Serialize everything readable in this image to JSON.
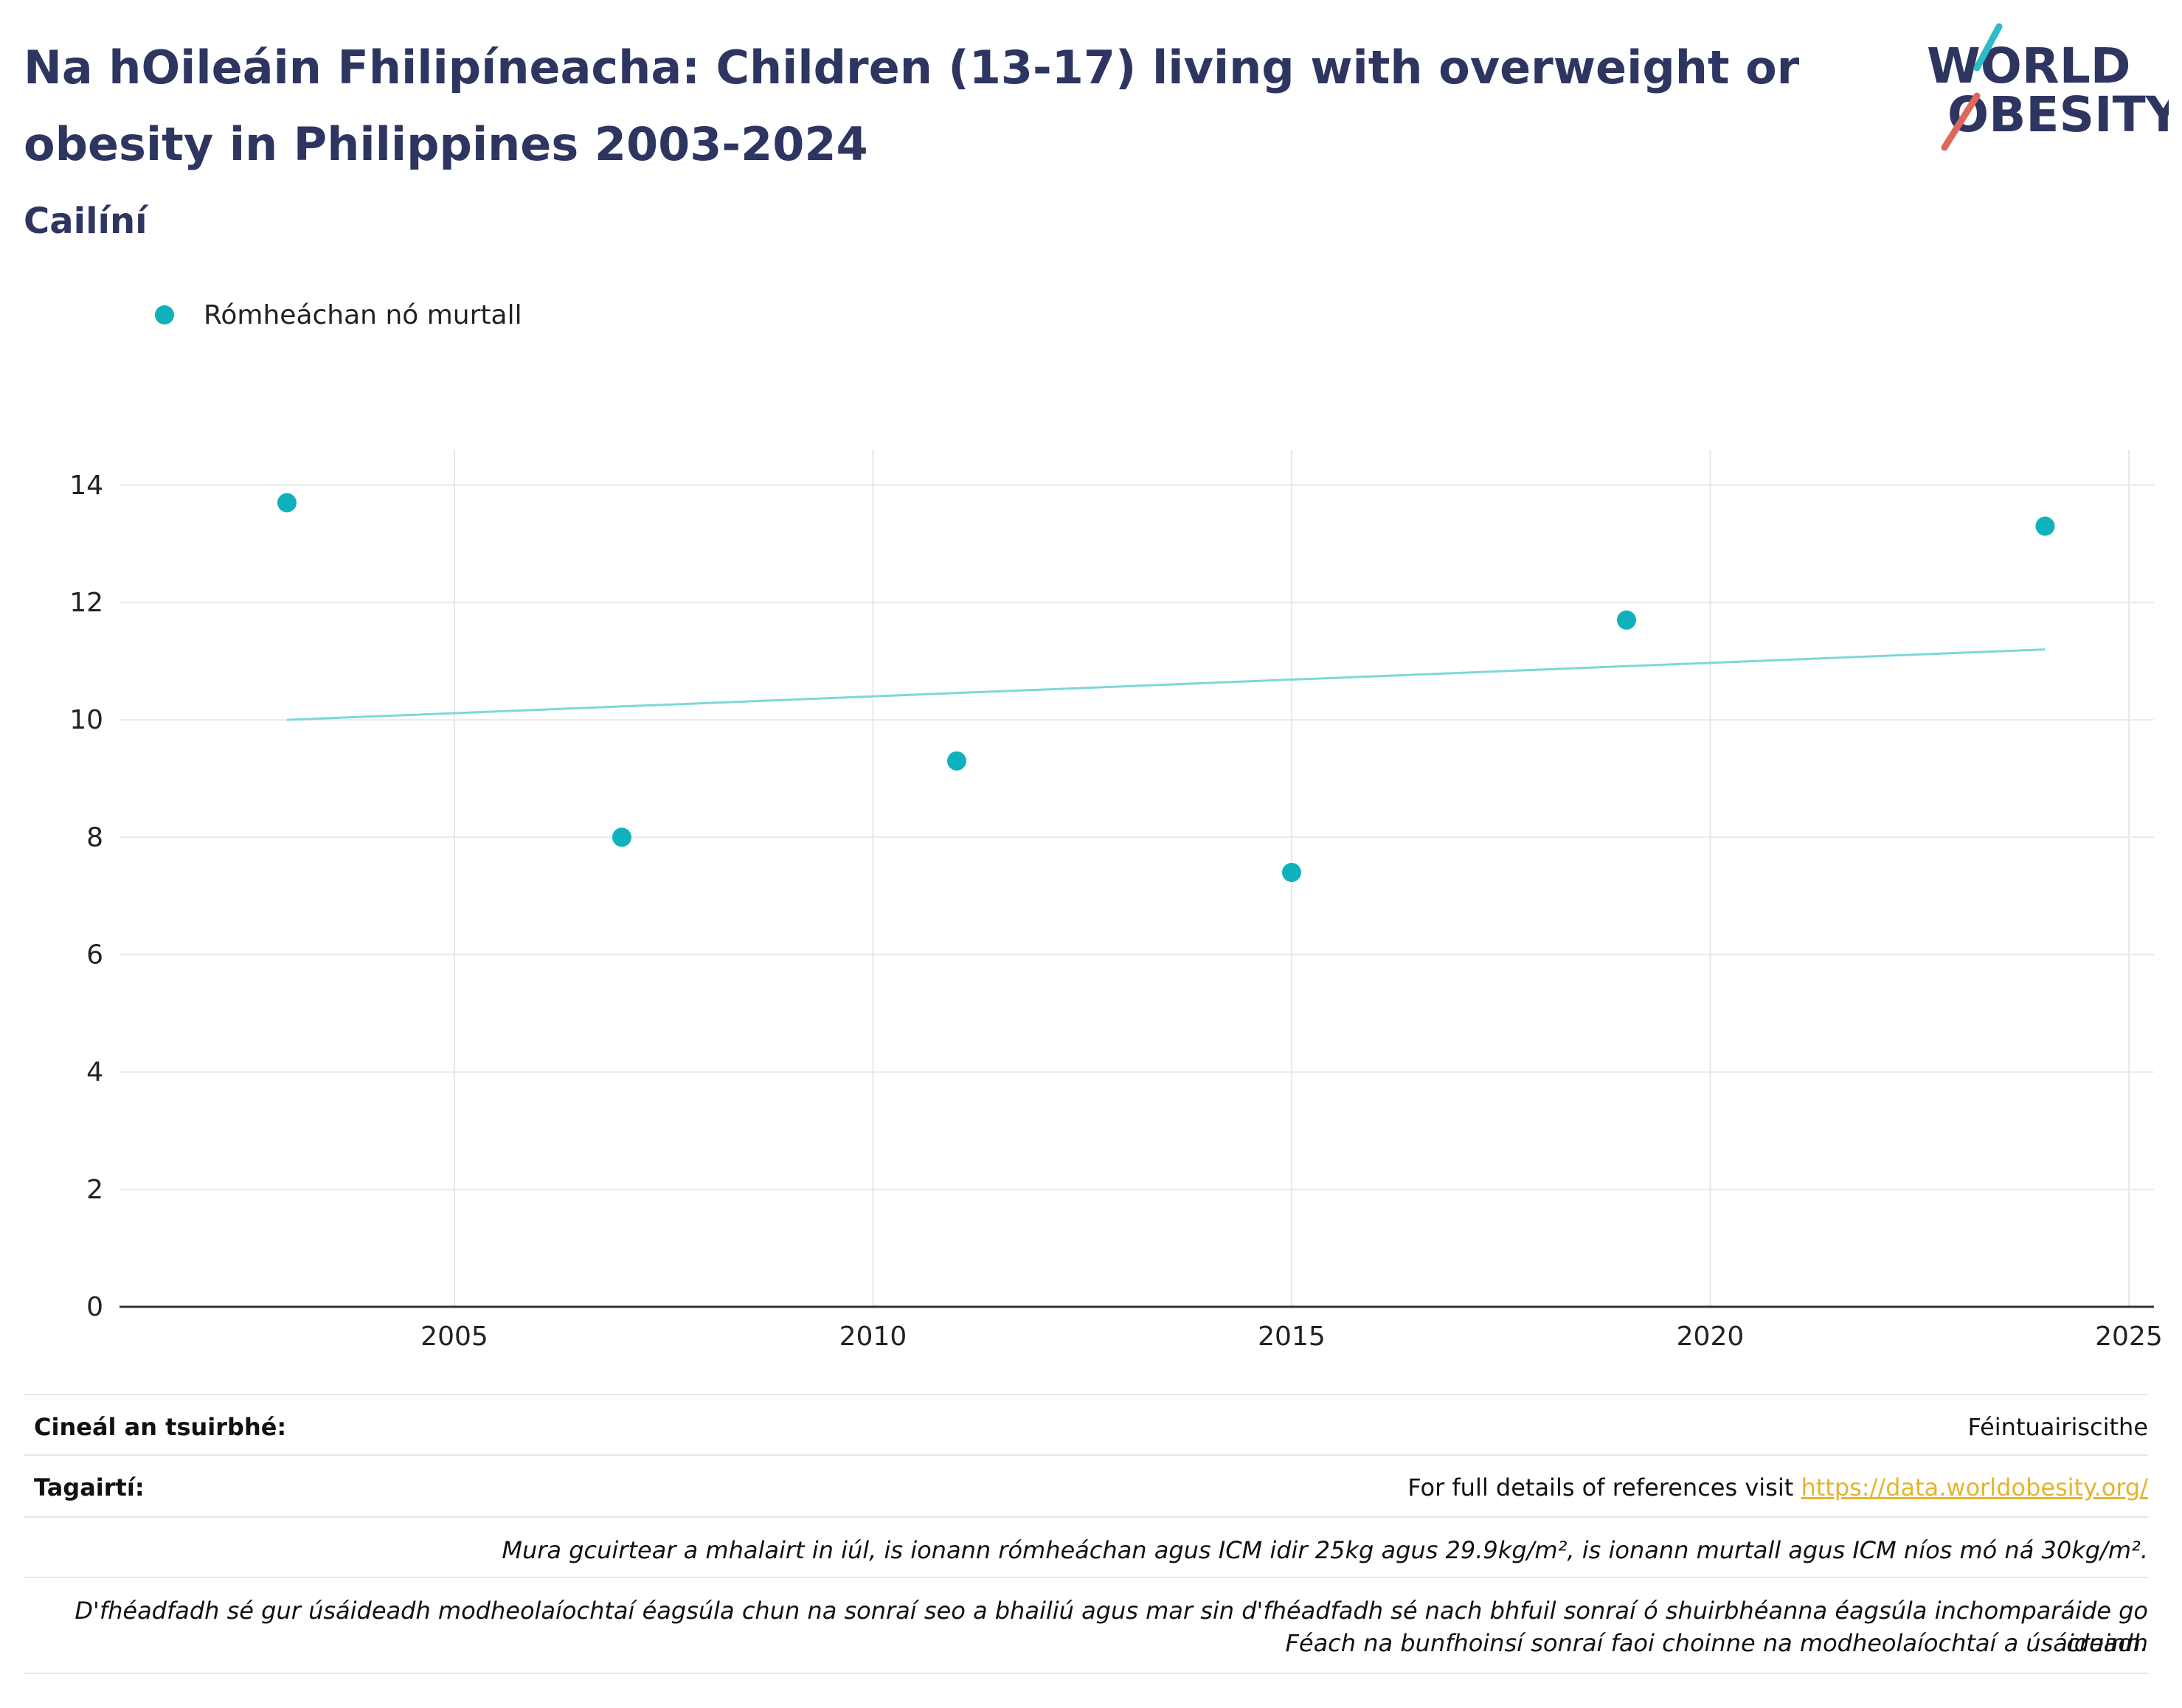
{
  "header": {
    "title": "Na hOileáin Fhilipíneacha: Children (13-17) living with overweight or obesity in Philippines 2003-2024",
    "subtitle": "Cailíní"
  },
  "logo": {
    "line1": "WORLD",
    "line2": "OBESITY",
    "colors": {
      "text": "#2d3560",
      "slash_teal": "#2bbcc6",
      "slash_red": "#e0685a"
    }
  },
  "legend": {
    "items": [
      {
        "label": "Rómheáchan nó murtall",
        "color": "#0fb1bc"
      }
    ]
  },
  "chart_data": {
    "type": "scatter",
    "series": [
      {
        "name": "Rómheáchan nó murtall",
        "color": "#0fb1bc",
        "points": [
          {
            "x": 2003,
            "y": 13.7
          },
          {
            "x": 2007,
            "y": 8.0
          },
          {
            "x": 2011,
            "y": 9.3
          },
          {
            "x": 2015,
            "y": 7.4
          },
          {
            "x": 2019,
            "y": 11.7
          },
          {
            "x": 2024,
            "y": 13.3
          }
        ]
      }
    ],
    "trendline": {
      "color": "#7dd8d8",
      "start": {
        "x": 2003,
        "y": 10.0
      },
      "end": {
        "x": 2024,
        "y": 11.2
      }
    },
    "xlim": [
      2001,
      2025.3
    ],
    "ylim": [
      0,
      14.6
    ],
    "xticks": [
      "2005",
      "2010",
      "2015",
      "2020",
      "2025"
    ],
    "yticks": [
      "0",
      "2",
      "4",
      "6",
      "8",
      "10",
      "12",
      "14"
    ],
    "grid": true,
    "legend_position": "top-left"
  },
  "footer": {
    "survey_type_label": "Cineál an tsuirbhé:",
    "survey_type_value": "Féintuairiscithe",
    "references_label": "Tagairtí:",
    "references_text": "For full details of references visit ",
    "references_link": "https://data.worldobesity.org/",
    "note_definition": "Mura gcuirtear a mhalairt in iúl, is ionann rómheáchan agus ICM idir 25kg agus 29.9kg/m², is ionann murtall agus ICM níos mó ná 30kg/m².",
    "note_methods_line1": "D'fhéadfadh sé gur úsáideadh modheolaíochtaí éagsúla chun na sonraí seo a bhailiú agus mar sin d'fhéadfadh sé nach bhfuil sonraí ó shuirbhéanna éagsúla inchomparáide go cruinn.",
    "note_methods_line2": "Féach na bunfhoinsí sonraí faoi choinne na modheolaíochtaí a úsáideadh"
  }
}
